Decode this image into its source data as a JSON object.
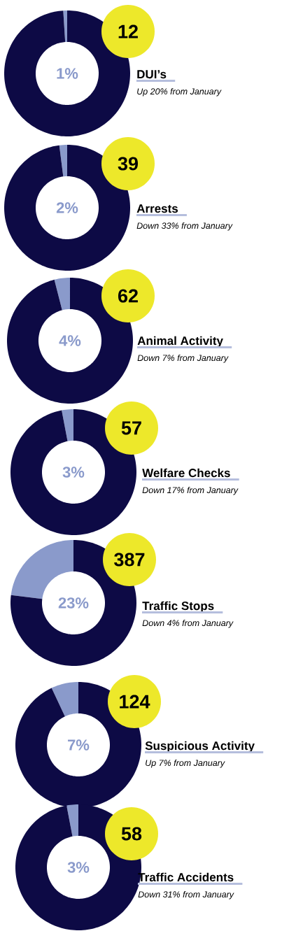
{
  "chart_data": [
    {
      "type": "donut",
      "title": "DUI’s",
      "subtitle": "Up 20% from January",
      "annotations": [
        "12",
        "1%"
      ],
      "categories": [
        null,
        null
      ],
      "values": [
        1,
        99
      ],
      "colors": [
        "#8a9acb",
        "#0d0a45"
      ]
    },
    {
      "type": "donut",
      "title": "Arrests",
      "subtitle": "Down 33% from January",
      "annotations": [
        "39",
        "2%"
      ],
      "categories": [
        null,
        null
      ],
      "values": [
        2,
        98
      ],
      "colors": [
        "#8a9acb",
        "#0d0a45"
      ]
    },
    {
      "type": "donut",
      "title": "Animal Activity",
      "subtitle": "Down 7% from January",
      "annotations": [
        "62",
        "4%"
      ],
      "categories": [
        null,
        null
      ],
      "values": [
        4,
        96
      ],
      "colors": [
        "#8a9acb",
        "#0d0a45"
      ]
    },
    {
      "type": "donut",
      "title": "Welfare Checks",
      "subtitle": "Down 17% from January",
      "annotations": [
        "57",
        "3%"
      ],
      "categories": [
        null,
        null
      ],
      "values": [
        3,
        97
      ],
      "colors": [
        "#8a9acb",
        "#0d0a45"
      ]
    },
    {
      "type": "donut",
      "title": "Traffic Stops",
      "subtitle": "Down 4% from January",
      "annotations": [
        "387",
        "23%"
      ],
      "categories": [
        null,
        null
      ],
      "values": [
        23,
        77
      ],
      "colors": [
        "#8a9acb",
        "#0d0a45"
      ]
    },
    {
      "type": "donut",
      "title": "Suspicious Activity",
      "subtitle": "Up 7% from January",
      "annotations": [
        "124",
        "7%"
      ],
      "categories": [
        null,
        null
      ],
      "values": [
        7,
        93
      ],
      "colors": [
        "#8a9acb",
        "#0d0a45"
      ]
    },
    {
      "type": "donut",
      "title": "Traffic Accidents",
      "subtitle": "Down 31% from January",
      "annotations": [
        "58",
        "3%"
      ],
      "categories": [
        null,
        null
      ],
      "values": [
        3,
        97
      ],
      "colors": [
        "#8a9acb",
        "#0d0a45"
      ]
    }
  ]
}
